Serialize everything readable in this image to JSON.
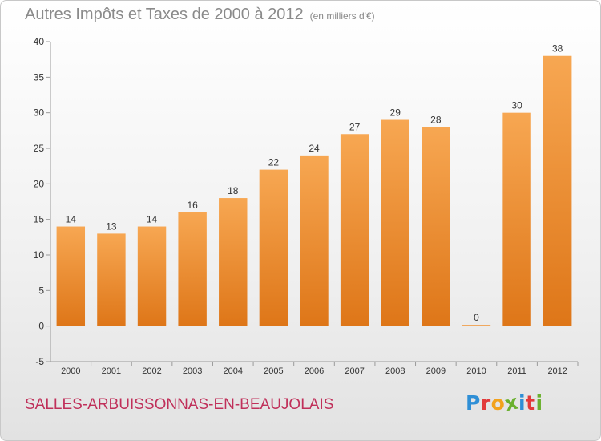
{
  "chart_data": {
    "type": "bar",
    "title": "Autres Impôts et Taxes de 2000 à 2012",
    "subtitle": "(en milliers d'€)",
    "categories": [
      "2000",
      "2001",
      "2002",
      "2003",
      "2004",
      "2005",
      "2006",
      "2007",
      "2008",
      "2009",
      "2010",
      "2011",
      "2012"
    ],
    "values": [
      14,
      13,
      14,
      16,
      18,
      22,
      24,
      27,
      29,
      28,
      0,
      30,
      38
    ],
    "ylim": [
      -5,
      40
    ],
    "yticks": [
      -5,
      0,
      5,
      10,
      15,
      20,
      25,
      30,
      35,
      40
    ],
    "grid": false,
    "legend": "none",
    "bar_color": "#f0963a"
  },
  "footer": {
    "town": "SALLES-ARBUISSONNAS-EN-BEAUJOLAIS",
    "logo_letters": [
      {
        "ch": "P",
        "color": "#2f8fd6"
      },
      {
        "ch": "r",
        "color": "#e23a3a"
      },
      {
        "ch": "o",
        "color": "#f2a21c"
      },
      {
        "ch": "x",
        "color": "#6ab02e"
      },
      {
        "ch": "i",
        "color": "#2f8fd6"
      },
      {
        "ch": "t",
        "color": "#e23a3a"
      },
      {
        "ch": "i",
        "color": "#6ab02e"
      }
    ]
  }
}
